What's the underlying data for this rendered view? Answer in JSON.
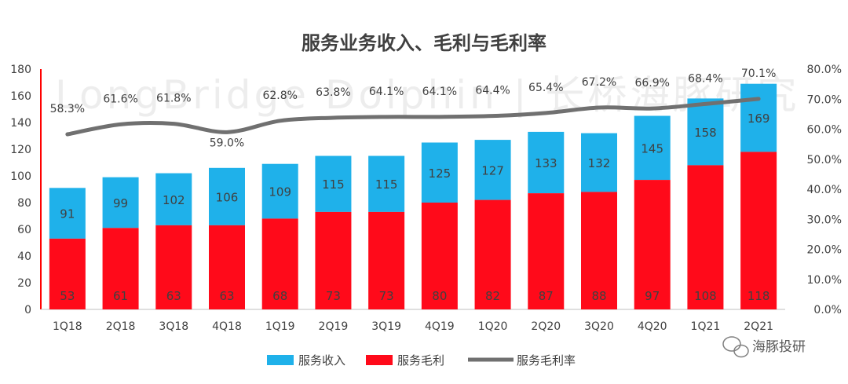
{
  "chart_data": {
    "type": "bar+line",
    "title": "服务业务收入、毛利与毛利率",
    "categories": [
      "1Q18",
      "2Q18",
      "3Q18",
      "4Q18",
      "1Q19",
      "2Q19",
      "3Q19",
      "4Q19",
      "1Q20",
      "2Q20",
      "3Q20",
      "4Q20",
      "1Q21",
      "2Q21"
    ],
    "series": [
      {
        "name": "服务收入",
        "type": "bar",
        "axis": "left",
        "values": [
          91,
          99,
          102,
          106,
          109,
          115,
          115,
          125,
          127,
          133,
          132,
          145,
          158,
          169
        ],
        "color": "#1fb1ea"
      },
      {
        "name": "服务毛利",
        "type": "bar",
        "axis": "left",
        "values": [
          53,
          61,
          63,
          63,
          68,
          73,
          73,
          80,
          82,
          87,
          88,
          97,
          108,
          118
        ],
        "color": "#ff0a1a"
      },
      {
        "name": "服务毛利率",
        "type": "line",
        "axis": "right",
        "values": [
          58.3,
          61.6,
          61.8,
          59.0,
          62.8,
          63.8,
          64.1,
          64.1,
          64.4,
          65.4,
          67.2,
          66.9,
          68.4,
          70.1
        ],
        "labels": [
          "58.3%",
          "61.6%",
          "61.8%",
          "59.0%",
          "62.8%",
          "63.8%",
          "64.1%",
          "64.1%",
          "64.4%",
          "65.4%",
          "67.2%",
          "66.9%",
          "68.4%",
          "70.1%"
        ],
        "color": "#707070"
      }
    ],
    "y_left": {
      "min": 0,
      "max": 180,
      "ticks": [
        0,
        20,
        40,
        60,
        80,
        100,
        120,
        140,
        160,
        180
      ]
    },
    "y_right": {
      "min": 0,
      "max": 80,
      "ticks": [
        "0.0%",
        "10.0%",
        "20.0%",
        "30.0%",
        "40.0%",
        "50.0%",
        "60.0%",
        "70.0%",
        "80.0%"
      ]
    },
    "legend_position": "bottom-center"
  },
  "watermark": "LongBridge Dolphin | 长桥海豚研究",
  "brand": "海豚投研"
}
